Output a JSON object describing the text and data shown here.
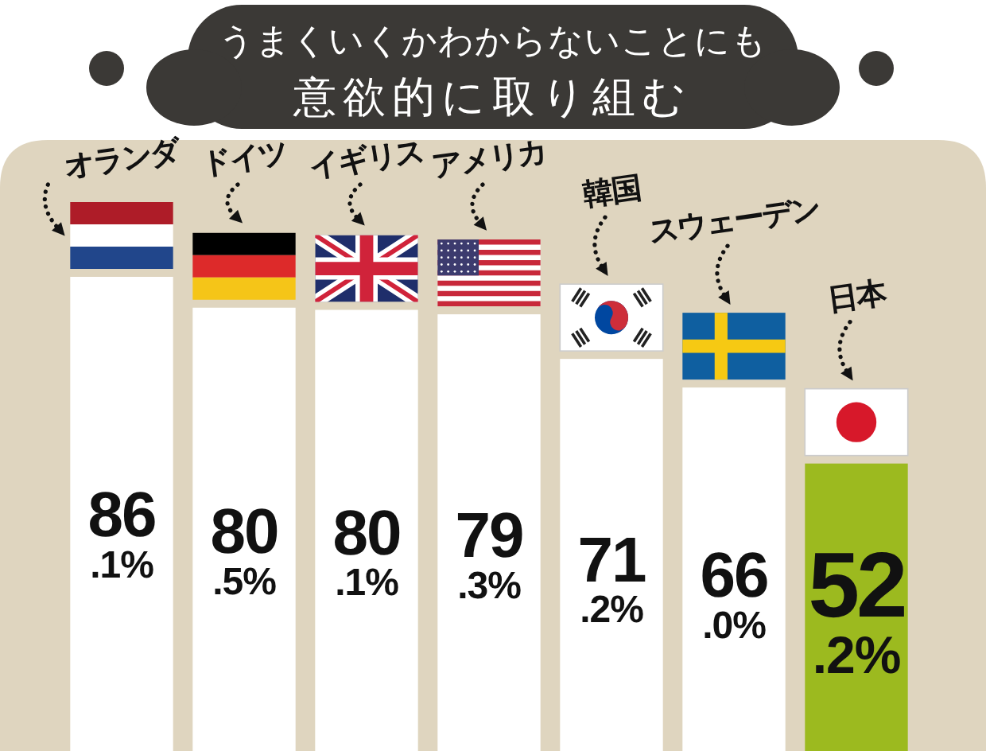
{
  "chart_data": {
    "type": "bar",
    "title": "うまくいくかわからないことにも意欲的に取り組む",
    "categories": [
      "オランダ",
      "ドイツ",
      "イギリス",
      "アメリカ",
      "韓国",
      "スウェーデン",
      "日本"
    ],
    "values": [
      86.1,
      80.5,
      80.1,
      79.3,
      71.2,
      66.0,
      52.2
    ],
    "colors": [
      "#ffffff",
      "#ffffff",
      "#ffffff",
      "#ffffff",
      "#ffffff",
      "#ffffff",
      "#9cba1f"
    ],
    "value_labels": [
      "86.1%",
      "80.5%",
      "80.1%",
      "79.3%",
      "71.2%",
      "66.0%",
      "52.2%"
    ],
    "tick_labels": "x"
  }
}
